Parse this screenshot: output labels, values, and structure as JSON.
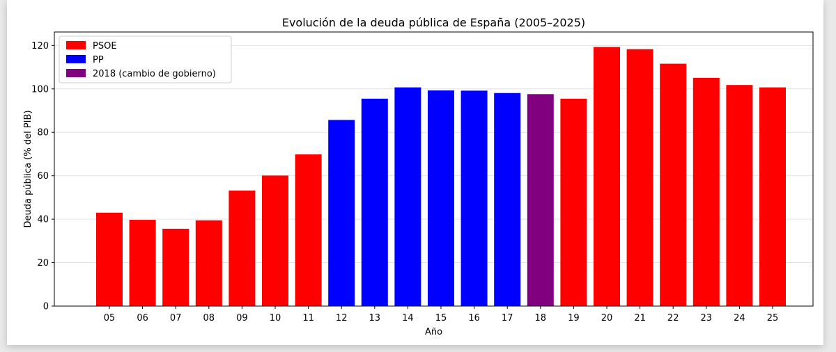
{
  "chart_data": {
    "type": "bar",
    "title": "Evolución de la deuda pública de España (2005–2025)",
    "xlabel": "Año",
    "ylabel": "Deuda pública (% del PIB)",
    "ylim": [
      0,
      120
    ],
    "yticks": [
      0,
      20,
      40,
      60,
      80,
      100,
      120
    ],
    "grid": "horizontal",
    "legend_position": "top-left",
    "categories": [
      "05",
      "06",
      "07",
      "08",
      "09",
      "10",
      "11",
      "12",
      "13",
      "14",
      "15",
      "16",
      "17",
      "18",
      "19",
      "20",
      "21",
      "22",
      "23",
      "24",
      "25"
    ],
    "values": [
      43,
      39.7,
      35.6,
      39.5,
      53.2,
      60.1,
      69.9,
      85.7,
      95.5,
      100.7,
      99.3,
      99.2,
      98.1,
      97.6,
      95.5,
      119.3,
      118.3,
      111.6,
      105.1,
      101.8,
      100.7
    ],
    "groups": [
      "PSOE",
      "PSOE",
      "PSOE",
      "PSOE",
      "PSOE",
      "PSOE",
      "PSOE",
      "PP",
      "PP",
      "PP",
      "PP",
      "PP",
      "PP",
      "2018",
      "PSOE",
      "PSOE",
      "PSOE",
      "PSOE",
      "PSOE",
      "PSOE",
      "PSOE"
    ],
    "legend": [
      {
        "key": "PSOE",
        "label": "PSOE",
        "color": "#ff0000"
      },
      {
        "key": "PP",
        "label": "PP",
        "color": "#0000ff"
      },
      {
        "key": "2018",
        "label": "2018 (cambio de gobierno)",
        "color": "#800080"
      }
    ]
  }
}
